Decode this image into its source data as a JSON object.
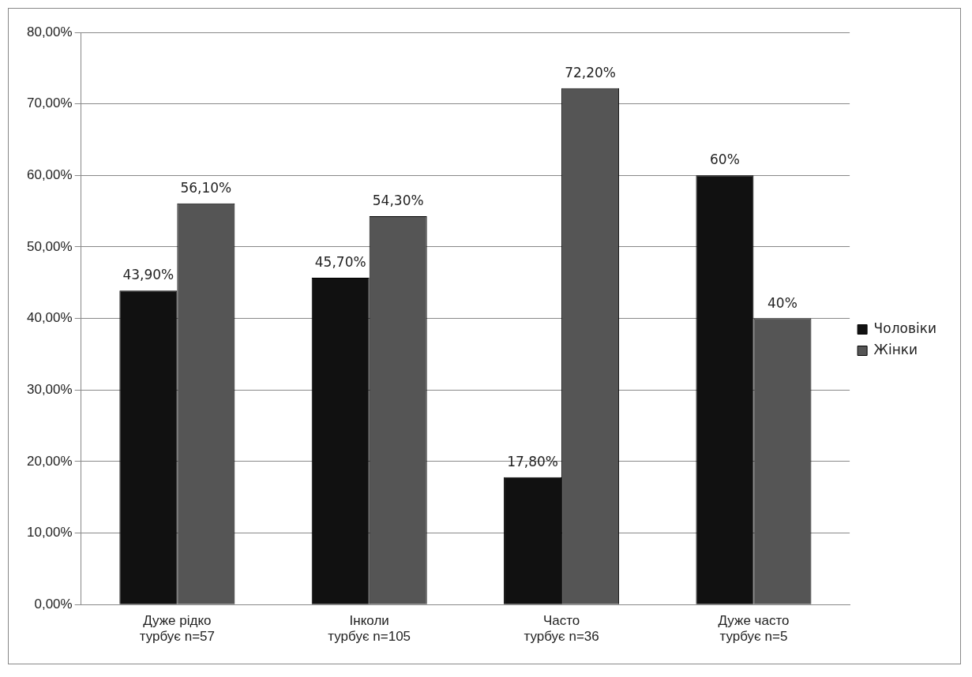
{
  "chart_data": {
    "type": "bar",
    "categories": [
      "Дуже рідко турбує n=57",
      "Інколи турбує n=105",
      "Часто турбує n=36",
      "Дуже часто турбує n=5"
    ],
    "series": [
      {
        "name": "Чоловіки",
        "color": "#111111",
        "values": [
          43.9,
          45.7,
          17.8,
          60
        ],
        "value_labels": [
          "43,90%",
          "45,70%",
          "17,80%",
          "60%"
        ]
      },
      {
        "name": "Жінки",
        "color": "#555555",
        "values": [
          56.1,
          54.3,
          72.2,
          40
        ],
        "value_labels": [
          "56,10%",
          "54,30%",
          "72,20%",
          "40%"
        ]
      }
    ],
    "ylim": [
      0,
      80
    ],
    "yticks": [
      {
        "value": 0,
        "label": "0,00%"
      },
      {
        "value": 10,
        "label": "10,00%"
      },
      {
        "value": 20,
        "label": "20,00%"
      },
      {
        "value": 30,
        "label": "30,00%"
      },
      {
        "value": 40,
        "label": "40,00%"
      },
      {
        "value": 50,
        "label": "50,00%"
      },
      {
        "value": 60,
        "label": "60,00%"
      },
      {
        "value": 70,
        "label": "70,00%"
      },
      {
        "value": 80,
        "label": "80,00%"
      }
    ],
    "grid": "y",
    "legend": "right"
  }
}
